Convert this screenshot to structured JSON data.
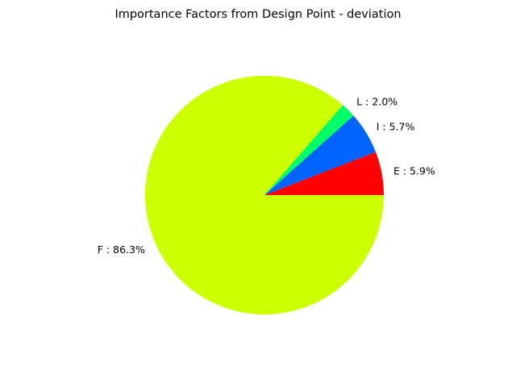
{
  "chart_data": {
    "type": "pie",
    "title": "Importance Factors from Design Point - deviation",
    "slices": [
      {
        "label": "E : 5.9%",
        "name": "E",
        "value": 5.9,
        "color": "#ff0000"
      },
      {
        "label": "I : 5.7%",
        "name": "I",
        "value": 5.7,
        "color": "#0062ff"
      },
      {
        "label": "L : 2.0%",
        "name": "L",
        "value": 2.0,
        "color": "#00ff66"
      },
      {
        "label": "F : 86.3%",
        "name": "F",
        "value": 86.3,
        "color": "#ccff00"
      }
    ],
    "start_angle_deg": 0,
    "direction": "counterclockwise",
    "legend": "none"
  }
}
